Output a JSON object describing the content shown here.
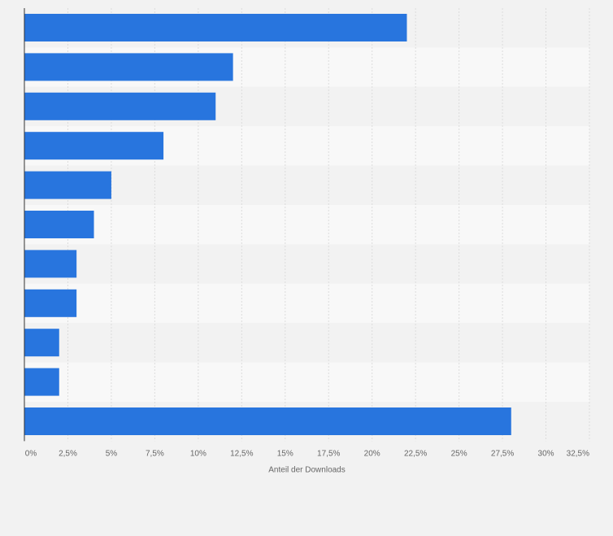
{
  "chart_data": {
    "type": "bar",
    "orientation": "horizontal",
    "categories": [
      "",
      "",
      "",
      "",
      "",
      "",
      "",
      "",
      "",
      "",
      ""
    ],
    "values": [
      22,
      12,
      11,
      8,
      5,
      4,
      3,
      3,
      2,
      2,
      28
    ],
    "xlabel": "Anteil der Downloads",
    "xlim": [
      0,
      32.5
    ],
    "x_ticks": [
      0,
      2.5,
      5,
      7.5,
      10,
      12.5,
      15,
      17.5,
      20,
      22.5,
      25,
      27.5,
      30,
      32.5
    ],
    "x_tick_labels": [
      "0%",
      "2,5%",
      "5%",
      "7,5%",
      "10%",
      "12,5%",
      "15%",
      "17,5%",
      "20%",
      "22,5%",
      "25%",
      "27,5%",
      "30%",
      "32,5%"
    ],
    "grid": true,
    "bar_color": "#2875de",
    "band_colors": [
      "#f2f2f2",
      "#f8f8f8"
    ],
    "grid_color": "#dcdcdc",
    "axis_color": "#333333"
  }
}
